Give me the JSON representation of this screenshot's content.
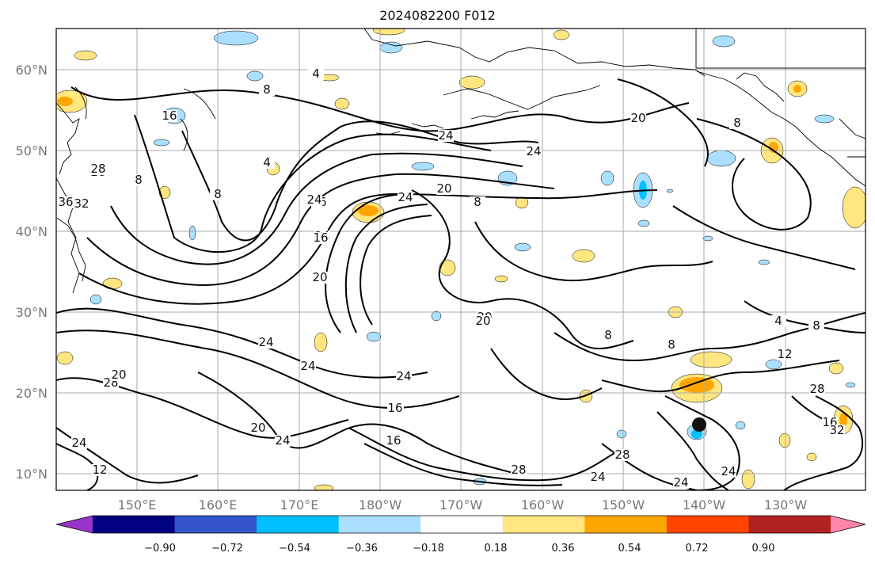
{
  "title": "2024082200 F012",
  "lat_labels": [
    "60°N",
    "50°N",
    "40°N",
    "30°N",
    "20°N",
    "10°N"
  ],
  "lon_labels": [
    "150°E",
    "160°E",
    "170°E",
    "180°W",
    "170°W",
    "160°W",
    "150°W",
    "140°W",
    "130°W"
  ],
  "colorbar": {
    "ticks": [
      "−0.90",
      "−0.72",
      "−0.54",
      "−0.36",
      "−0.18",
      "0.18",
      "0.36",
      "0.54",
      "0.72",
      "0.90"
    ],
    "colors": [
      "#9933cc",
      "#000080",
      "#3355cc",
      "#00bfff",
      "#aadfff",
      "#ffffff",
      "#ffe680",
      "#ffa500",
      "#ff4500",
      "#b22222",
      "#ff88aa"
    ]
  },
  "contour_labels": [
    "4",
    "8",
    "16",
    "24",
    "8",
    "16",
    "24",
    "28",
    "32",
    "36",
    "4",
    "8",
    "24",
    "16",
    "20",
    "24",
    "20",
    "8",
    "24",
    "20",
    "16",
    "20",
    "24",
    "24",
    "28",
    "20",
    "24",
    "12",
    "16",
    "24",
    "28",
    "8",
    "8",
    "4",
    "8",
    "12",
    "16",
    "28",
    "32",
    "28",
    "24",
    "24",
    "4",
    "8",
    "8",
    "20",
    "24",
    "28",
    "20",
    "16",
    "24"
  ],
  "colors": {
    "contour": "#000000",
    "grid": "#aaaaaa",
    "coast": "#000000",
    "neg_light": "#aadfff",
    "neg_mid": "#00bfff",
    "pos_light": "#ffe680",
    "pos_mid": "#ffa500"
  }
}
